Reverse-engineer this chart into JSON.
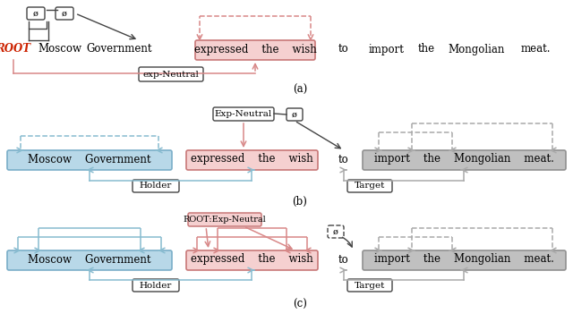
{
  "bg_color": "#ffffff",
  "pink_fill": "#f5d0d0",
  "pink_border": "#c87878",
  "blue_fill": "#b8d8e8",
  "blue_border": "#7aaec8",
  "gray_fill": "#c0c0c0",
  "gray_border": "#909090",
  "white_fill": "#ffffff",
  "dark_border": "#444444",
  "pink_arrow": "#d88888",
  "blue_arrow": "#88bcd0",
  "gray_arrow": "#aaaaaa",
  "red_text": "#cc2200",
  "label_a": "(a)",
  "label_b": "(b)",
  "label_c": "(c)"
}
